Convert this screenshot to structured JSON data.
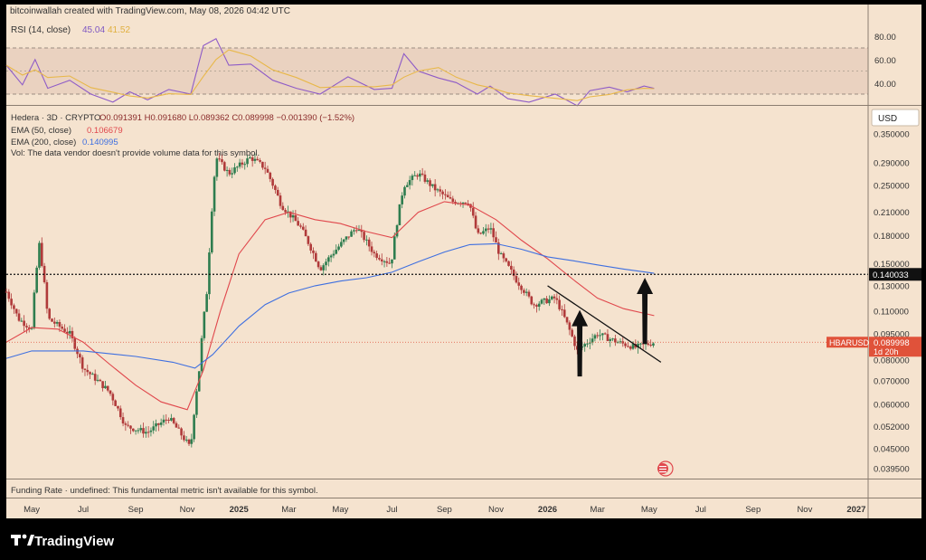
{
  "header": {
    "attribution": "bitcoinwallah created with TradingView.com, May 08, 2026 04:42 UTC"
  },
  "rsi_panel": {
    "label": "RSI (14, close)",
    "value1": "45.04",
    "value2": "41.52",
    "ticks": [
      "80.00",
      "60.00",
      "40.00"
    ]
  },
  "main_legend": {
    "line1_name": "Hedera · 3D · CRYPTO",
    "line1_ohlc": "O0.091391 H0.091680 L0.089362 C0.089998 −0.001390 (−1.52%)",
    "ema50_label": "EMA (50, close)",
    "ema50_value": "0.106679",
    "ema200_label": "EMA (200, close)",
    "ema200_value": "0.140995",
    "vol_text": "Vol: The data vendor doesn't provide volume data for this symbol."
  },
  "currency": "USD",
  "price_ticks": [
    "0.350000",
    "0.290000",
    "0.250000",
    "0.210000",
    "0.180000",
    "0.150000",
    "0.130000",
    "0.110000",
    "0.095000",
    "0.080000",
    "0.070000",
    "0.060000",
    "0.052000",
    "0.045000",
    "0.039500"
  ],
  "level_label": "0.140033",
  "symbol_tag": "HBARUSD",
  "price_tag": "0.089998",
  "countdown_tag": "1d 20h",
  "funding_text": "Funding Rate · undefined: This fundamental metric isn't available for this symbol.",
  "time_ticks": [
    "May",
    "Jul",
    "Sep",
    "Nov",
    "2025",
    "Mar",
    "May",
    "Jul",
    "Sep",
    "Nov",
    "2026",
    "Mar",
    "May",
    "Jul",
    "Sep",
    "Nov",
    "2027"
  ],
  "footer_brand": "TradingView",
  "colors": {
    "background": "#f5e3cf",
    "up_candle": "#2e7d4f",
    "down_candle": "#b03a3a",
    "ema50": "#e0474c",
    "ema200": "#3e6fe0",
    "rsi_line": "#8e5bc7",
    "rsi_ma": "#e8b84a",
    "price_tag": "#e0523a"
  },
  "chart_data": {
    "type": "candlestick",
    "title": "Hedera · 3D · CRYPTO",
    "symbol": "HBARUSD",
    "scale": "log",
    "ylim": [
      0.037,
      0.42
    ],
    "x_range": [
      "2024-04-01",
      "2027-01-15"
    ],
    "horizontal_level": 0.140033,
    "last_close": 0.089998,
    "price_path": [
      {
        "date": "2024-04-01",
        "price": 0.125
      },
      {
        "date": "2024-04-15",
        "price": 0.105
      },
      {
        "date": "2024-05-01",
        "price": 0.098
      },
      {
        "date": "2024-05-10",
        "price": 0.17
      },
      {
        "date": "2024-05-20",
        "price": 0.105
      },
      {
        "date": "2024-06-15",
        "price": 0.095
      },
      {
        "date": "2024-07-01",
        "price": 0.076
      },
      {
        "date": "2024-08-01",
        "price": 0.065
      },
      {
        "date": "2024-08-20",
        "price": 0.052
      },
      {
        "date": "2024-09-15",
        "price": 0.05
      },
      {
        "date": "2024-10-10",
        "price": 0.055
      },
      {
        "date": "2024-11-05",
        "price": 0.045
      },
      {
        "date": "2024-11-15",
        "price": 0.075
      },
      {
        "date": "2024-11-25",
        "price": 0.13
      },
      {
        "date": "2024-12-05",
        "price": 0.3
      },
      {
        "date": "2024-12-20",
        "price": 0.27
      },
      {
        "date": "2025-01-15",
        "price": 0.3
      },
      {
        "date": "2025-02-01",
        "price": 0.28
      },
      {
        "date": "2025-02-20",
        "price": 0.22
      },
      {
        "date": "2025-03-15",
        "price": 0.19
      },
      {
        "date": "2025-04-07",
        "price": 0.145
      },
      {
        "date": "2025-05-01",
        "price": 0.17
      },
      {
        "date": "2025-05-20",
        "price": 0.19
      },
      {
        "date": "2025-06-10",
        "price": 0.16
      },
      {
        "date": "2025-06-30",
        "price": 0.15
      },
      {
        "date": "2025-07-15",
        "price": 0.25
      },
      {
        "date": "2025-08-01",
        "price": 0.27
      },
      {
        "date": "2025-08-20",
        "price": 0.245
      },
      {
        "date": "2025-09-10",
        "price": 0.225
      },
      {
        "date": "2025-09-30",
        "price": 0.225
      },
      {
        "date": "2025-10-10",
        "price": 0.18
      },
      {
        "date": "2025-10-25",
        "price": 0.19
      },
      {
        "date": "2025-11-05",
        "price": 0.16
      },
      {
        "date": "2025-11-25",
        "price": 0.135
      },
      {
        "date": "2025-12-15",
        "price": 0.115
      },
      {
        "date": "2026-01-10",
        "price": 0.12
      },
      {
        "date": "2026-01-25",
        "price": 0.1
      },
      {
        "date": "2026-02-05",
        "price": 0.085
      },
      {
        "date": "2026-03-01",
        "price": 0.095
      },
      {
        "date": "2026-03-25",
        "price": 0.09
      },
      {
        "date": "2026-04-15",
        "price": 0.087
      },
      {
        "date": "2026-05-07",
        "price": 0.09
      }
    ],
    "ema50": [
      {
        "date": "2024-04-01",
        "value": 0.09
      },
      {
        "date": "2024-05-01",
        "value": 0.099
      },
      {
        "date": "2024-06-01",
        "value": 0.098
      },
      {
        "date": "2024-07-01",
        "value": 0.09
      },
      {
        "date": "2024-08-01",
        "value": 0.078
      },
      {
        "date": "2024-09-01",
        "value": 0.068
      },
      {
        "date": "2024-10-01",
        "value": 0.061
      },
      {
        "date": "2024-11-01",
        "value": 0.058
      },
      {
        "date": "2024-11-20",
        "value": 0.075
      },
      {
        "date": "2024-12-10",
        "value": 0.11
      },
      {
        "date": "2025-01-01",
        "value": 0.16
      },
      {
        "date": "2025-02-01",
        "value": 0.2
      },
      {
        "date": "2025-03-01",
        "value": 0.21
      },
      {
        "date": "2025-04-01",
        "value": 0.2
      },
      {
        "date": "2025-05-01",
        "value": 0.195
      },
      {
        "date": "2025-06-01",
        "value": 0.185
      },
      {
        "date": "2025-07-01",
        "value": 0.178
      },
      {
        "date": "2025-08-01",
        "value": 0.21
      },
      {
        "date": "2025-09-01",
        "value": 0.225
      },
      {
        "date": "2025-10-01",
        "value": 0.22
      },
      {
        "date": "2025-11-01",
        "value": 0.2
      },
      {
        "date": "2025-12-01",
        "value": 0.175
      },
      {
        "date": "2026-01-01",
        "value": 0.155
      },
      {
        "date": "2026-02-01",
        "value": 0.135
      },
      {
        "date": "2026-03-01",
        "value": 0.12
      },
      {
        "date": "2026-04-01",
        "value": 0.112
      },
      {
        "date": "2026-05-07",
        "value": 0.107
      }
    ],
    "ema200": [
      {
        "date": "2024-04-01",
        "value": 0.081
      },
      {
        "date": "2024-05-01",
        "value": 0.085
      },
      {
        "date": "2024-07-01",
        "value": 0.085
      },
      {
        "date": "2024-09-01",
        "value": 0.082
      },
      {
        "date": "2024-10-15",
        "value": 0.079
      },
      {
        "date": "2024-11-10",
        "value": 0.076
      },
      {
        "date": "2024-12-01",
        "value": 0.083
      },
      {
        "date": "2025-01-01",
        "value": 0.1
      },
      {
        "date": "2025-02-01",
        "value": 0.115
      },
      {
        "date": "2025-03-01",
        "value": 0.124
      },
      {
        "date": "2025-04-01",
        "value": 0.13
      },
      {
        "date": "2025-05-01",
        "value": 0.134
      },
      {
        "date": "2025-06-01",
        "value": 0.137
      },
      {
        "date": "2025-07-01",
        "value": 0.142
      },
      {
        "date": "2025-08-01",
        "value": 0.152
      },
      {
        "date": "2025-09-01",
        "value": 0.162
      },
      {
        "date": "2025-10-01",
        "value": 0.17
      },
      {
        "date": "2025-11-01",
        "value": 0.171
      },
      {
        "date": "2025-12-01",
        "value": 0.165
      },
      {
        "date": "2026-01-01",
        "value": 0.157
      },
      {
        "date": "2026-02-01",
        "value": 0.153
      },
      {
        "date": "2026-03-01",
        "value": 0.149
      },
      {
        "date": "2026-04-01",
        "value": 0.145
      },
      {
        "date": "2026-05-07",
        "value": 0.141
      }
    ],
    "rsi": [
      {
        "date": "2024-04-01",
        "value": 65
      },
      {
        "date": "2024-04-20",
        "value": 48
      },
      {
        "date": "2024-05-05",
        "value": 70
      },
      {
        "date": "2024-05-20",
        "value": 45
      },
      {
        "date": "2024-06-15",
        "value": 52
      },
      {
        "date": "2024-07-10",
        "value": 40
      },
      {
        "date": "2024-08-05",
        "value": 33
      },
      {
        "date": "2024-08-25",
        "value": 42
      },
      {
        "date": "2024-09-15",
        "value": 35
      },
      {
        "date": "2024-10-10",
        "value": 44
      },
      {
        "date": "2024-11-05",
        "value": 40
      },
      {
        "date": "2024-11-20",
        "value": 82
      },
      {
        "date": "2024-12-05",
        "value": 88
      },
      {
        "date": "2024-12-20",
        "value": 65
      },
      {
        "date": "2025-01-15",
        "value": 66
      },
      {
        "date": "2025-02-10",
        "value": 52
      },
      {
        "date": "2025-03-10",
        "value": 45
      },
      {
        "date": "2025-04-07",
        "value": 40
      },
      {
        "date": "2025-05-10",
        "value": 55
      },
      {
        "date": "2025-06-10",
        "value": 44
      },
      {
        "date": "2025-07-01",
        "value": 45
      },
      {
        "date": "2025-07-15",
        "value": 75
      },
      {
        "date": "2025-08-01",
        "value": 60
      },
      {
        "date": "2025-08-25",
        "value": 54
      },
      {
        "date": "2025-09-15",
        "value": 50
      },
      {
        "date": "2025-10-10",
        "value": 40
      },
      {
        "date": "2025-10-25",
        "value": 47
      },
      {
        "date": "2025-11-15",
        "value": 36
      },
      {
        "date": "2025-12-10",
        "value": 33
      },
      {
        "date": "2026-01-10",
        "value": 40
      },
      {
        "date": "2026-02-05",
        "value": 30
      },
      {
        "date": "2026-02-20",
        "value": 43
      },
      {
        "date": "2026-03-15",
        "value": 46
      },
      {
        "date": "2026-04-05",
        "value": 42
      },
      {
        "date": "2026-04-25",
        "value": 47
      },
      {
        "date": "2026-05-07",
        "value": 45
      }
    ],
    "trendline": [
      {
        "date": "2026-01-01",
        "price": 0.13
      },
      {
        "date": "2026-05-15",
        "price": 0.079
      }
    ],
    "arrows": [
      {
        "date": "2026-02-08",
        "from": 0.072,
        "to": 0.111
      },
      {
        "date": "2026-04-26",
        "from": 0.089,
        "to": 0.137
      }
    ]
  }
}
